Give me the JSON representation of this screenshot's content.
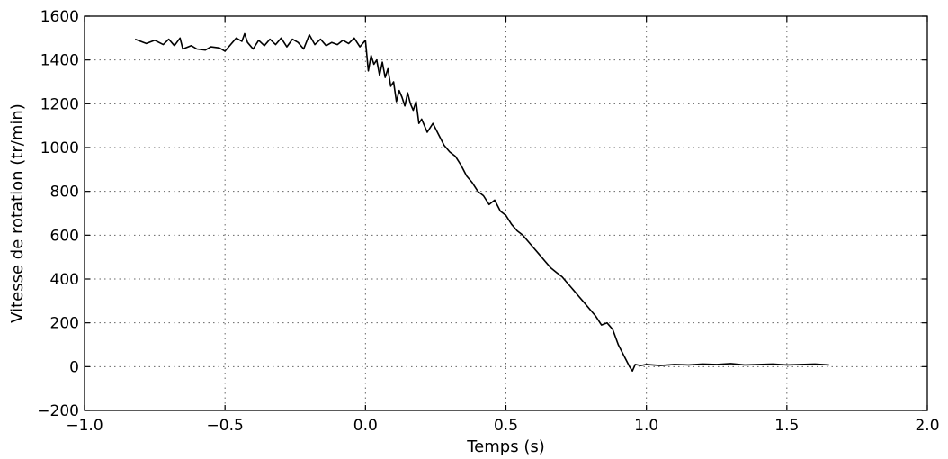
{
  "chart_data": {
    "type": "line",
    "title": "",
    "xlabel": "Temps (s)",
    "ylabel": "Vitesse de rotation (tr/min)",
    "xlim": [
      -1.0,
      2.0
    ],
    "ylim": [
      -200,
      1600
    ],
    "xticks": [
      -1.0,
      -0.5,
      0.0,
      0.5,
      1.0,
      1.5,
      2.0
    ],
    "xtick_labels": [
      "−1.0",
      "−0.5",
      "0.0",
      "0.5",
      "1.0",
      "1.5",
      "2.0"
    ],
    "yticks": [
      -200,
      0,
      200,
      400,
      600,
      800,
      1000,
      1200,
      1400,
      1600
    ],
    "ytick_labels": [
      "−200",
      "0",
      "200",
      "400",
      "600",
      "800",
      "1000",
      "1200",
      "1400",
      "1600"
    ],
    "grid": true,
    "line_color": "#000000",
    "series": [
      {
        "x": [
          -0.82,
          -0.78,
          -0.75,
          -0.72,
          -0.7,
          -0.68,
          -0.66,
          -0.65,
          -0.62,
          -0.6,
          -0.57,
          -0.55,
          -0.52,
          -0.5,
          -0.48,
          -0.46,
          -0.44,
          -0.43,
          -0.42,
          -0.4,
          -0.38,
          -0.36,
          -0.34,
          -0.32,
          -0.3,
          -0.28,
          -0.26,
          -0.24,
          -0.22,
          -0.2,
          -0.18,
          -0.16,
          -0.14,
          -0.12,
          -0.1,
          -0.08,
          -0.06,
          -0.04,
          -0.02,
          0.0,
          0.01,
          0.02,
          0.03,
          0.04,
          0.05,
          0.06,
          0.07,
          0.08,
          0.09,
          0.1,
          0.11,
          0.12,
          0.13,
          0.14,
          0.15,
          0.16,
          0.17,
          0.18,
          0.19,
          0.2,
          0.22,
          0.24,
          0.26,
          0.28,
          0.3,
          0.32,
          0.34,
          0.36,
          0.38,
          0.4,
          0.42,
          0.44,
          0.46,
          0.48,
          0.5,
          0.52,
          0.54,
          0.56,
          0.58,
          0.6,
          0.62,
          0.64,
          0.66,
          0.68,
          0.7,
          0.72,
          0.74,
          0.76,
          0.78,
          0.8,
          0.82,
          0.84,
          0.86,
          0.88,
          0.9,
          0.92,
          0.94,
          0.95,
          0.96,
          0.98,
          1.0,
          1.05,
          1.1,
          1.15,
          1.2,
          1.25,
          1.3,
          1.35,
          1.4,
          1.45,
          1.5,
          1.55,
          1.6,
          1.65
        ],
        "y": [
          1495,
          1475,
          1490,
          1470,
          1495,
          1465,
          1500,
          1450,
          1465,
          1450,
          1445,
          1460,
          1455,
          1440,
          1470,
          1500,
          1485,
          1520,
          1480,
          1450,
          1490,
          1465,
          1495,
          1470,
          1500,
          1460,
          1495,
          1480,
          1450,
          1515,
          1470,
          1495,
          1465,
          1480,
          1470,
          1490,
          1475,
          1500,
          1460,
          1490,
          1350,
          1420,
          1380,
          1400,
          1330,
          1390,
          1320,
          1360,
          1280,
          1300,
          1210,
          1260,
          1230,
          1190,
          1250,
          1200,
          1170,
          1210,
          1110,
          1130,
          1070,
          1110,
          1060,
          1010,
          980,
          960,
          920,
          870,
          840,
          800,
          780,
          740,
          760,
          710,
          690,
          650,
          620,
          600,
          570,
          540,
          510,
          480,
          450,
          430,
          410,
          380,
          350,
          320,
          290,
          260,
          230,
          190,
          200,
          170,
          100,
          50,
          0,
          -20,
          10,
          5,
          10,
          5,
          10,
          8,
          12,
          10,
          14,
          8,
          10,
          12,
          8,
          10,
          12,
          8
        ]
      }
    ]
  }
}
